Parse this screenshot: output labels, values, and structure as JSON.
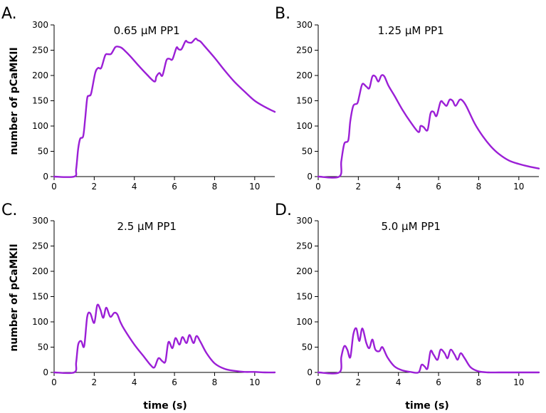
{
  "figure": {
    "ylabel": "number of pCaMKII",
    "xlabel": "time (s)",
    "line_color": "#9b1fd6"
  },
  "chart_data": [
    {
      "panel": "A.",
      "type": "line",
      "title": "0.65 μM PP1",
      "xlim": [
        0,
        11
      ],
      "ylim": [
        0,
        300
      ],
      "xticks": [
        0,
        2,
        4,
        6,
        8,
        10
      ],
      "yticks": [
        0,
        50,
        100,
        150,
        200,
        250,
        300
      ],
      "series": [
        {
          "name": "0.65 μM PP1",
          "x": [
            0,
            1.0,
            1.1,
            1.2,
            1.3,
            1.45,
            1.55,
            1.65,
            1.75,
            1.85,
            2.05,
            2.2,
            2.35,
            2.55,
            2.7,
            2.85,
            3.05,
            3.2,
            3.35,
            3.5,
            3.8,
            4.2,
            4.6,
            5.0,
            5.1,
            5.25,
            5.4,
            5.6,
            5.75,
            5.9,
            6.1,
            6.2,
            6.35,
            6.55,
            6.65,
            6.85,
            7.05,
            7.15,
            7.3,
            7.5,
            8.0,
            8.5,
            9.0,
            9.5,
            10.0,
            10.5,
            11.0
          ],
          "y": [
            0,
            0,
            15,
            55,
            75,
            80,
            115,
            155,
            160,
            165,
            205,
            215,
            215,
            240,
            242,
            243,
            256,
            257,
            255,
            250,
            238,
            220,
            203,
            188,
            198,
            205,
            200,
            230,
            233,
            232,
            255,
            252,
            252,
            268,
            266,
            265,
            273,
            270,
            267,
            258,
            235,
            210,
            187,
            168,
            150,
            138,
            128
          ]
        }
      ]
    },
    {
      "panel": "B.",
      "type": "line",
      "title": "1.25 μM PP1",
      "xlim": [
        0,
        11
      ],
      "ylim": [
        0,
        300
      ],
      "xticks": [
        0,
        2,
        4,
        6,
        8,
        10
      ],
      "yticks": [
        0,
        50,
        100,
        150,
        200,
        250,
        300
      ],
      "series": [
        {
          "name": "1.25 μM PP1",
          "x": [
            0,
            1.05,
            1.15,
            1.3,
            1.5,
            1.6,
            1.75,
            1.95,
            2.05,
            2.2,
            2.4,
            2.55,
            2.7,
            2.85,
            3.0,
            3.15,
            3.3,
            3.5,
            3.8,
            4.2,
            4.6,
            5.0,
            5.1,
            5.25,
            5.45,
            5.6,
            5.75,
            5.9,
            6.1,
            6.25,
            6.4,
            6.55,
            6.7,
            6.85,
            7.05,
            7.2,
            7.4,
            7.8,
            8.2,
            8.6,
            9.0,
            9.5,
            10.0,
            10.5,
            11.0
          ],
          "y": [
            0,
            0,
            30,
            65,
            72,
            110,
            140,
            145,
            160,
            183,
            178,
            175,
            198,
            198,
            188,
            200,
            198,
            180,
            160,
            132,
            108,
            88,
            100,
            98,
            92,
            125,
            128,
            120,
            148,
            145,
            140,
            152,
            150,
            140,
            152,
            150,
            138,
            105,
            80,
            60,
            45,
            32,
            25,
            20,
            16
          ]
        }
      ]
    },
    {
      "panel": "C.",
      "type": "line",
      "title": "2.5 μM PP1",
      "xlim": [
        0,
        11
      ],
      "ylim": [
        0,
        300
      ],
      "xticks": [
        0,
        2,
        4,
        6,
        8,
        10
      ],
      "yticks": [
        0,
        50,
        100,
        150,
        200,
        250,
        300
      ],
      "series": [
        {
          "name": "2.5 μM PP1",
          "x": [
            0,
            1.0,
            1.1,
            1.2,
            1.35,
            1.5,
            1.65,
            1.8,
            2.0,
            2.15,
            2.3,
            2.45,
            2.6,
            2.8,
            3.0,
            3.15,
            3.3,
            3.5,
            4.0,
            4.5,
            4.8,
            5.0,
            5.2,
            5.4,
            5.55,
            5.7,
            5.9,
            6.05,
            6.25,
            6.4,
            6.6,
            6.75,
            6.95,
            7.1,
            7.3,
            7.6,
            8.0,
            8.5,
            9.0,
            9.5,
            10.0,
            10.5,
            11.0
          ],
          "y": [
            0,
            0,
            20,
            55,
            62,
            52,
            110,
            117,
            98,
            133,
            125,
            108,
            128,
            110,
            118,
            115,
            100,
            85,
            55,
            30,
            15,
            10,
            28,
            22,
            22,
            60,
            48,
            68,
            55,
            70,
            58,
            74,
            58,
            72,
            60,
            38,
            18,
            7,
            3,
            1,
            1,
            0,
            0
          ]
        }
      ]
    },
    {
      "panel": "D.",
      "type": "line",
      "title": "5.0 μM PP1",
      "xlim": [
        0,
        11
      ],
      "ylim": [
        0,
        300
      ],
      "xticks": [
        0,
        2,
        4,
        6,
        8,
        10
      ],
      "yticks": [
        0,
        50,
        100,
        150,
        200,
        250,
        300
      ],
      "series": [
        {
          "name": "5.0 μM PP1",
          "x": [
            0,
            1.05,
            1.15,
            1.3,
            1.45,
            1.6,
            1.75,
            1.9,
            2.05,
            2.2,
            2.4,
            2.55,
            2.7,
            2.85,
            3.05,
            3.2,
            3.45,
            3.8,
            4.2,
            4.6,
            5.0,
            5.15,
            5.3,
            5.45,
            5.6,
            5.75,
            5.95,
            6.1,
            6.3,
            6.45,
            6.6,
            6.8,
            6.95,
            7.1,
            7.3,
            7.6,
            8.0,
            8.5,
            9.0,
            9.5,
            10.0,
            10.5,
            11.0
          ],
          "y": [
            0,
            0,
            30,
            52,
            45,
            30,
            75,
            87,
            62,
            87,
            58,
            48,
            65,
            45,
            42,
            50,
            30,
            12,
            4,
            1,
            0,
            15,
            12,
            8,
            42,
            35,
            25,
            45,
            38,
            28,
            45,
            35,
            25,
            38,
            28,
            10,
            2,
            0,
            0,
            0,
            0,
            0,
            0
          ]
        }
      ]
    }
  ]
}
